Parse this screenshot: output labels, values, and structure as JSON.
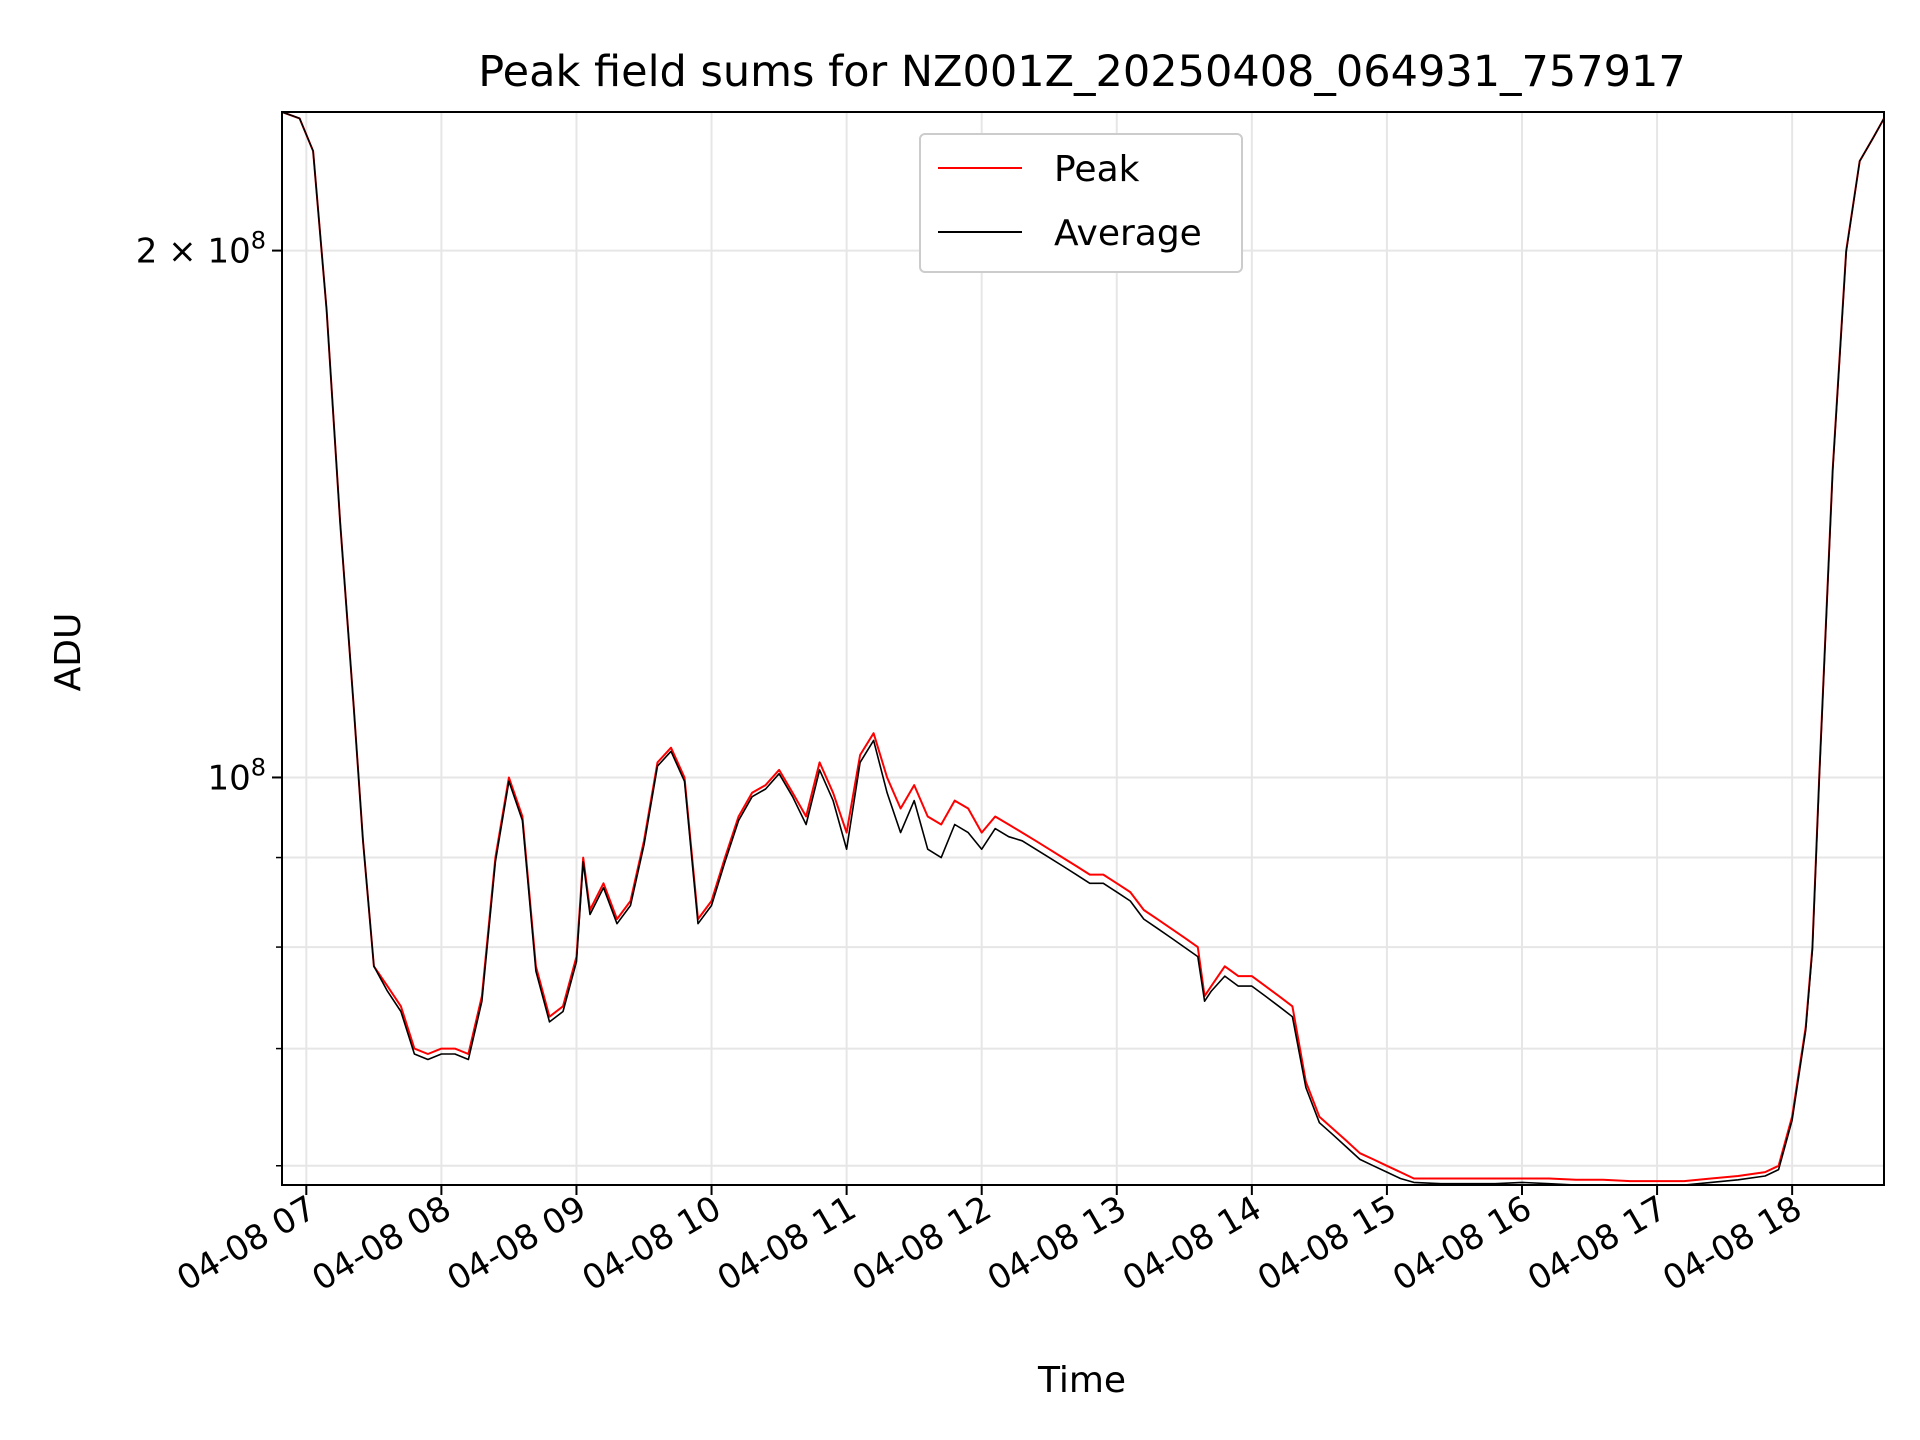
{
  "chart_data": {
    "type": "line",
    "title": "Peak field sums for NZ001Z_20250408_064931_757917",
    "xlabel": "Time",
    "ylabel": "ADU",
    "yscale": "log",
    "grid": true,
    "legend_position": "top-center",
    "xlim": [
      6.82,
      18.68
    ],
    "ylim": [
      58500000,
      240000000
    ],
    "x_ticks": [
      {
        "value": 7,
        "label": "04-08 07"
      },
      {
        "value": 8,
        "label": "04-08 08"
      },
      {
        "value": 9,
        "label": "04-08 09"
      },
      {
        "value": 10,
        "label": "04-08 10"
      },
      {
        "value": 11,
        "label": "04-08 11"
      },
      {
        "value": 12,
        "label": "04-08 12"
      },
      {
        "value": 13,
        "label": "04-08 13"
      },
      {
        "value": 14,
        "label": "04-08 14"
      },
      {
        "value": 15,
        "label": "04-08 15"
      },
      {
        "value": 16,
        "label": "04-08 16"
      },
      {
        "value": 17,
        "label": "04-08 17"
      },
      {
        "value": 18,
        "label": "04-08 18"
      }
    ],
    "y_major_ticks": [
      {
        "value": 100000000,
        "base": "10",
        "exp": "8",
        "mant": ""
      },
      {
        "value": 200000000,
        "base": "10",
        "exp": "8",
        "mant": "2 × "
      }
    ],
    "y_minor_ticks": [
      60000000,
      70000000,
      80000000,
      90000000
    ],
    "series": [
      {
        "name": "Peak",
        "color": "#ff0000",
        "x": [
          6.82,
          6.95,
          7.05,
          7.15,
          7.25,
          7.35,
          7.42,
          7.5,
          7.6,
          7.7,
          7.8,
          7.9,
          8.0,
          8.1,
          8.2,
          8.3,
          8.4,
          8.5,
          8.6,
          8.7,
          8.8,
          8.9,
          9.0,
          9.05,
          9.1,
          9.2,
          9.3,
          9.4,
          9.5,
          9.6,
          9.7,
          9.8,
          9.9,
          10.0,
          10.1,
          10.2,
          10.3,
          10.4,
          10.5,
          10.6,
          10.7,
          10.8,
          10.9,
          11.0,
          11.1,
          11.2,
          11.3,
          11.4,
          11.5,
          11.6,
          11.7,
          11.8,
          11.9,
          12.0,
          12.1,
          12.2,
          12.3,
          12.4,
          12.5,
          12.6,
          12.7,
          12.8,
          12.9,
          13.0,
          13.1,
          13.2,
          13.3,
          13.4,
          13.5,
          13.6,
          13.65,
          13.7,
          13.8,
          13.9,
          14.0,
          14.1,
          14.2,
          14.3,
          14.4,
          14.5,
          14.6,
          14.7,
          14.8,
          14.9,
          15.0,
          15.1,
          15.2,
          15.4,
          15.6,
          15.8,
          16.0,
          16.2,
          16.4,
          16.6,
          16.8,
          17.0,
          17.2,
          17.4,
          17.6,
          17.8,
          17.9,
          18.0,
          18.1,
          18.15,
          18.2,
          18.3,
          18.4,
          18.5,
          18.6,
          18.68
        ],
        "y": [
          240000000,
          238000000,
          228000000,
          185000000,
          140000000,
          110000000,
          92000000,
          78000000,
          76000000,
          74000000,
          70000000,
          69500000,
          70000000,
          70000000,
          69500000,
          75000000,
          90000000,
          100000000,
          95000000,
          78000000,
          73000000,
          74000000,
          79000000,
          90000000,
          84000000,
          87000000,
          83000000,
          85000000,
          92000000,
          102000000,
          104000000,
          100000000,
          83000000,
          85000000,
          90000000,
          95000000,
          98000000,
          99000000,
          101000000,
          98000000,
          95000000,
          102000000,
          98000000,
          93000000,
          103000000,
          106000000,
          100000000,
          96000000,
          99000000,
          95000000,
          94000000,
          97000000,
          96000000,
          93000000,
          95000000,
          94000000,
          93000000,
          92000000,
          91000000,
          90000000,
          89000000,
          88000000,
          88000000,
          87000000,
          86000000,
          84000000,
          83000000,
          82000000,
          81000000,
          80000000,
          75000000,
          76000000,
          78000000,
          77000000,
          77000000,
          76000000,
          75000000,
          74000000,
          67000000,
          64000000,
          63000000,
          62000000,
          61000000,
          60500000,
          60000000,
          59500000,
          59000000,
          59000000,
          59000000,
          59000000,
          59000000,
          59000000,
          58900000,
          58900000,
          58800000,
          58800000,
          58800000,
          59000000,
          59200000,
          59500000,
          60000000,
          64000000,
          72000000,
          80000000,
          100000000,
          150000000,
          200000000,
          225000000,
          232000000,
          238000000
        ]
      },
      {
        "name": "Average",
        "color": "#000000",
        "x": [
          6.82,
          6.95,
          7.05,
          7.15,
          7.25,
          7.35,
          7.42,
          7.5,
          7.6,
          7.7,
          7.8,
          7.9,
          8.0,
          8.1,
          8.2,
          8.3,
          8.4,
          8.5,
          8.6,
          8.7,
          8.8,
          8.9,
          9.0,
          9.05,
          9.1,
          9.2,
          9.3,
          9.4,
          9.5,
          9.6,
          9.7,
          9.8,
          9.9,
          10.0,
          10.1,
          10.2,
          10.3,
          10.4,
          10.5,
          10.6,
          10.7,
          10.8,
          10.9,
          11.0,
          11.1,
          11.2,
          11.3,
          11.4,
          11.5,
          11.6,
          11.7,
          11.8,
          11.9,
          12.0,
          12.1,
          12.2,
          12.3,
          12.4,
          12.5,
          12.6,
          12.7,
          12.8,
          12.9,
          13.0,
          13.1,
          13.2,
          13.3,
          13.4,
          13.5,
          13.6,
          13.65,
          13.7,
          13.8,
          13.9,
          14.0,
          14.1,
          14.2,
          14.3,
          14.4,
          14.5,
          14.6,
          14.7,
          14.8,
          14.9,
          15.0,
          15.1,
          15.2,
          15.4,
          15.6,
          15.8,
          16.0,
          16.2,
          16.4,
          16.6,
          16.8,
          17.0,
          17.2,
          17.4,
          17.6,
          17.8,
          17.9,
          18.0,
          18.1,
          18.15,
          18.2,
          18.3,
          18.4,
          18.5,
          18.6,
          18.68
        ],
        "y": [
          240000000,
          238000000,
          228000000,
          185000000,
          140000000,
          110000000,
          92000000,
          78000000,
          75500000,
          73500000,
          69500000,
          69000000,
          69500000,
          69500000,
          69000000,
          74500000,
          89500000,
          99500000,
          94500000,
          77500000,
          72500000,
          73500000,
          78500000,
          89500000,
          83500000,
          86500000,
          82500000,
          84500000,
          91500000,
          101500000,
          103500000,
          99500000,
          82500000,
          84500000,
          89500000,
          94500000,
          97500000,
          98500000,
          100500000,
          97500000,
          94000000,
          101000000,
          97000000,
          91000000,
          102000000,
          105000000,
          98000000,
          93000000,
          97000000,
          91000000,
          90000000,
          94000000,
          93000000,
          91000000,
          93500000,
          92500000,
          92000000,
          91000000,
          90000000,
          89000000,
          88000000,
          87000000,
          87000000,
          86000000,
          85000000,
          83000000,
          82000000,
          81000000,
          80000000,
          79000000,
          74500000,
          75500000,
          77000000,
          76000000,
          76000000,
          75000000,
          74000000,
          73000000,
          66500000,
          63500000,
          62500000,
          61500000,
          60500000,
          60000000,
          59500000,
          59000000,
          58700000,
          58600000,
          58600000,
          58600000,
          58700000,
          58600000,
          58500000,
          58500000,
          58500000,
          58500000,
          58500000,
          58700000,
          58900000,
          59200000,
          59700000,
          63700000,
          71700000,
          79700000,
          99700000,
          149700000,
          199700000,
          225000000,
          232000000,
          238000000
        ]
      }
    ]
  }
}
